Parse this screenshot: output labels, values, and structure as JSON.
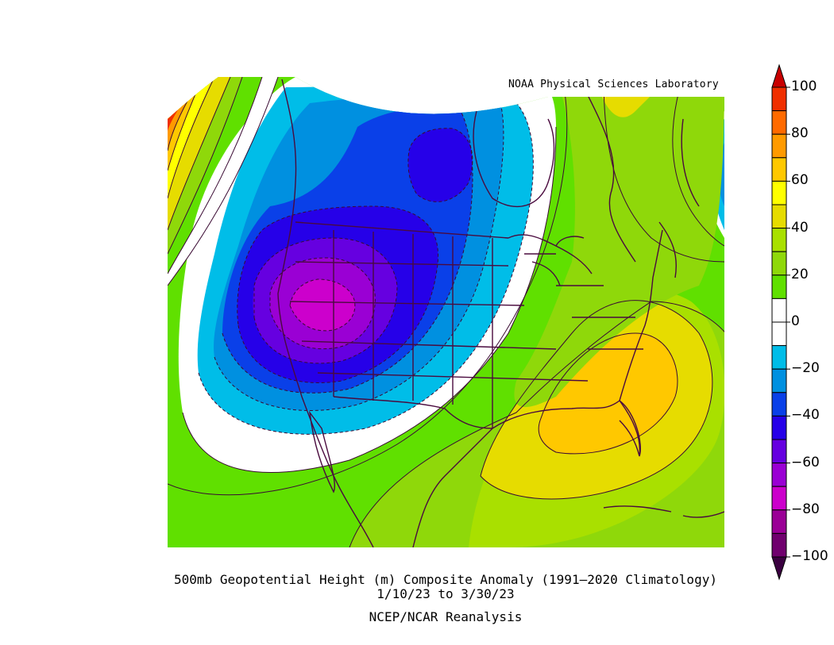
{
  "credit": "NOAA Physical Sciences Laboratory",
  "caption": {
    "line1": "500mb Geopotential Height (m) Composite Anomaly (1991–2020 Climatology)",
    "line2": "1/10/23   to 3/30/23",
    "line3": "NCEP/NCAR Reanalysis"
  },
  "colorbar": {
    "labels": [
      "100",
      "80",
      "60",
      "40",
      "20",
      "0",
      "−20",
      "−40",
      "−60",
      "−80",
      "−100"
    ],
    "bins": [
      {
        "range": "90 to 100",
        "color": "#f02f00"
      },
      {
        "range": "80 to 90",
        "color": "#ff6a00"
      },
      {
        "range": "70 to 80",
        "color": "#ff9a00"
      },
      {
        "range": "60 to 70",
        "color": "#ffc800"
      },
      {
        "range": "50 to 60",
        "color": "#ffff00"
      },
      {
        "range": "40 to 50",
        "color": "#e6dc00"
      },
      {
        "range": "30 to 40",
        "color": "#a9e000"
      },
      {
        "range": "20 to 30",
        "color": "#8fd80a"
      },
      {
        "range": "10 to 20",
        "color": "#60e000"
      },
      {
        "range": "0 to 10",
        "color": "#ffffff"
      },
      {
        "range": "-10 to 0",
        "color": "#ffffff"
      },
      {
        "range": "-20 to -10",
        "color": "#00bde8"
      },
      {
        "range": "-30 to -20",
        "color": "#0090e0"
      },
      {
        "range": "-40 to -30",
        "color": "#0a40e8"
      },
      {
        "range": "-50 to -40",
        "color": "#2600e8"
      },
      {
        "range": "-60 to -50",
        "color": "#6600e0"
      },
      {
        "range": "-70 to -60",
        "color": "#9a00d4"
      },
      {
        "range": "-80 to -70",
        "color": "#cc00cc"
      },
      {
        "range": "-90 to -80",
        "color": "#9a0096"
      },
      {
        "range": "-100 to -90",
        "color": "#70006e"
      }
    ],
    "top_arrow_color": "#c80000",
    "bottom_arrow_color": "#3a0040"
  },
  "map": {
    "region": "North America",
    "outline_color": "#4a0a3e",
    "features": [
      {
        "name": "negative-anomaly-center",
        "value": -80,
        "location": "western United States"
      },
      {
        "name": "positive-anomaly-center",
        "value": 60,
        "location": "southeastern United States"
      },
      {
        "name": "positive-anomaly-northwest",
        "value": 100,
        "location": "northeast Pacific"
      }
    ]
  }
}
